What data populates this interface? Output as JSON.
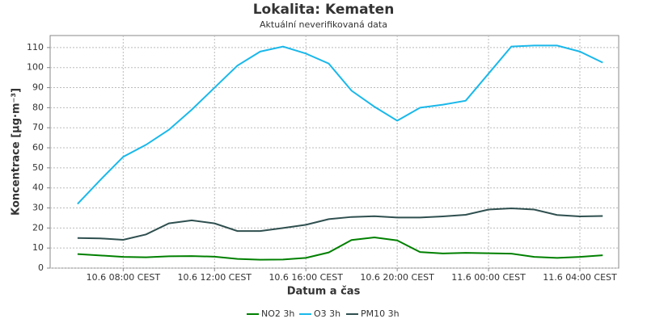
{
  "chart_data": {
    "type": "line",
    "title": "Lokalita: Kematen",
    "subtitle": "Aktuální neverifikovaná data",
    "xlabel": "Datum a čas",
    "ylabel": "Koncentrace [µg·m⁻³]",
    "x": [
      6,
      7,
      8,
      9,
      10,
      11,
      12,
      13,
      14,
      15,
      16,
      17,
      18,
      19,
      20,
      21,
      22,
      23,
      24,
      25,
      26,
      27,
      28,
      29
    ],
    "xlim": [
      4.8,
      29.7
    ],
    "xticks": [
      {
        "value": 8,
        "label": "10.6 08:00 CEST"
      },
      {
        "value": 12,
        "label": "10.6 12:00 CEST"
      },
      {
        "value": 16,
        "label": "10.6 16:00 CEST"
      },
      {
        "value": 20,
        "label": "10.6 20:00 CEST"
      },
      {
        "value": 24,
        "label": "11.6 00:00 CEST"
      },
      {
        "value": 28,
        "label": "11.6 04:00 CEST"
      }
    ],
    "ylim": [
      0,
      116
    ],
    "yticks": [
      0,
      10,
      20,
      30,
      40,
      50,
      60,
      70,
      80,
      90,
      100,
      110
    ],
    "grid": true,
    "legend": "bottom",
    "series": [
      {
        "name": "NO2 3h",
        "color": "#008000",
        "values": [
          7,
          6.3,
          5.6,
          5.4,
          5.9,
          6,
          5.7,
          4.6,
          4.2,
          4.3,
          5.1,
          7.8,
          14,
          15.3,
          13.8,
          8,
          7.3,
          7.6,
          7.4,
          7.2,
          5.6,
          5.1,
          5.6,
          6.4
        ]
      },
      {
        "name": "O3 3h",
        "color": "#1ab8ea",
        "values": [
          32,
          44,
          55.5,
          61.5,
          69,
          79,
          90,
          101,
          108,
          110.5,
          107,
          102,
          88.5,
          80.5,
          73.5,
          80,
          81.5,
          83.5,
          97,
          110.5,
          111,
          111,
          108,
          102.5
        ]
      },
      {
        "name": "PM10 3h",
        "color": "#2f4f4f",
        "values": [
          15,
          14.8,
          14.1,
          16.8,
          22.3,
          23.8,
          22.3,
          18.5,
          18.5,
          20,
          21.6,
          24.4,
          25.5,
          25.9,
          25.2,
          25.2,
          25.8,
          26.6,
          29.2,
          29.8,
          29.2,
          26.5,
          25.8,
          26
        ]
      }
    ]
  }
}
